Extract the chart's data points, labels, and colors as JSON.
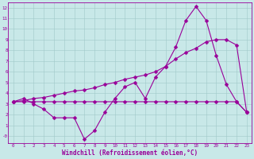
{
  "bg_color": "#c8e8e8",
  "line_color": "#990099",
  "grid_color": "#a0c8c8",
  "xlabel": "Windchill (Refroidissement éolien,°C)",
  "xlim": [
    -0.5,
    23.5
  ],
  "ylim": [
    -0.7,
    12.5
  ],
  "xticks": [
    0,
    1,
    2,
    3,
    4,
    5,
    6,
    7,
    8,
    9,
    10,
    11,
    12,
    13,
    14,
    15,
    16,
    17,
    18,
    19,
    20,
    21,
    22,
    23
  ],
  "yticks": [
    0,
    1,
    2,
    3,
    4,
    5,
    6,
    7,
    8,
    9,
    10,
    11,
    12
  ],
  "ytick_labels": [
    "-0",
    "1",
    "2",
    "3",
    "4",
    "5",
    "6",
    "7",
    "8",
    "9",
    "10",
    "11",
    "12"
  ],
  "line1_x": [
    0,
    1,
    2,
    3,
    4,
    5,
    6,
    7,
    8,
    9,
    10,
    11,
    12,
    13,
    14,
    15,
    16,
    17,
    18,
    19,
    20,
    21,
    22,
    23
  ],
  "line1_y": [
    3.2,
    3.5,
    3.0,
    2.5,
    1.7,
    1.7,
    1.7,
    -0.3,
    0.5,
    2.2,
    3.5,
    4.6,
    5.0,
    3.5,
    5.5,
    6.5,
    8.3,
    10.8,
    12.1,
    10.8,
    7.5,
    4.8,
    3.2,
    2.2
  ],
  "line2_x": [
    0,
    1,
    2,
    3,
    4,
    5,
    6,
    7,
    8,
    9,
    10,
    11,
    12,
    13,
    14,
    15,
    16,
    17,
    18,
    19,
    20,
    21,
    22,
    23
  ],
  "line2_y": [
    3.2,
    3.2,
    3.2,
    3.2,
    3.2,
    3.2,
    3.2,
    3.2,
    3.2,
    3.2,
    3.2,
    3.2,
    3.2,
    3.2,
    3.2,
    3.2,
    3.2,
    3.2,
    3.2,
    3.2,
    3.2,
    3.2,
    3.2,
    2.2
  ],
  "line3_x": [
    0,
    1,
    2,
    3,
    4,
    5,
    6,
    7,
    8,
    9,
    10,
    11,
    12,
    13,
    14,
    15,
    16,
    17,
    18,
    19,
    20,
    21,
    22,
    23
  ],
  "line3_y": [
    3.2,
    3.3,
    3.5,
    3.6,
    3.8,
    4.0,
    4.2,
    4.3,
    4.5,
    4.8,
    5.0,
    5.3,
    5.5,
    5.7,
    6.0,
    6.5,
    7.2,
    7.8,
    8.2,
    8.8,
    9.0,
    9.0,
    8.5,
    2.2
  ],
  "markersize": 2.5,
  "linewidth": 0.8
}
